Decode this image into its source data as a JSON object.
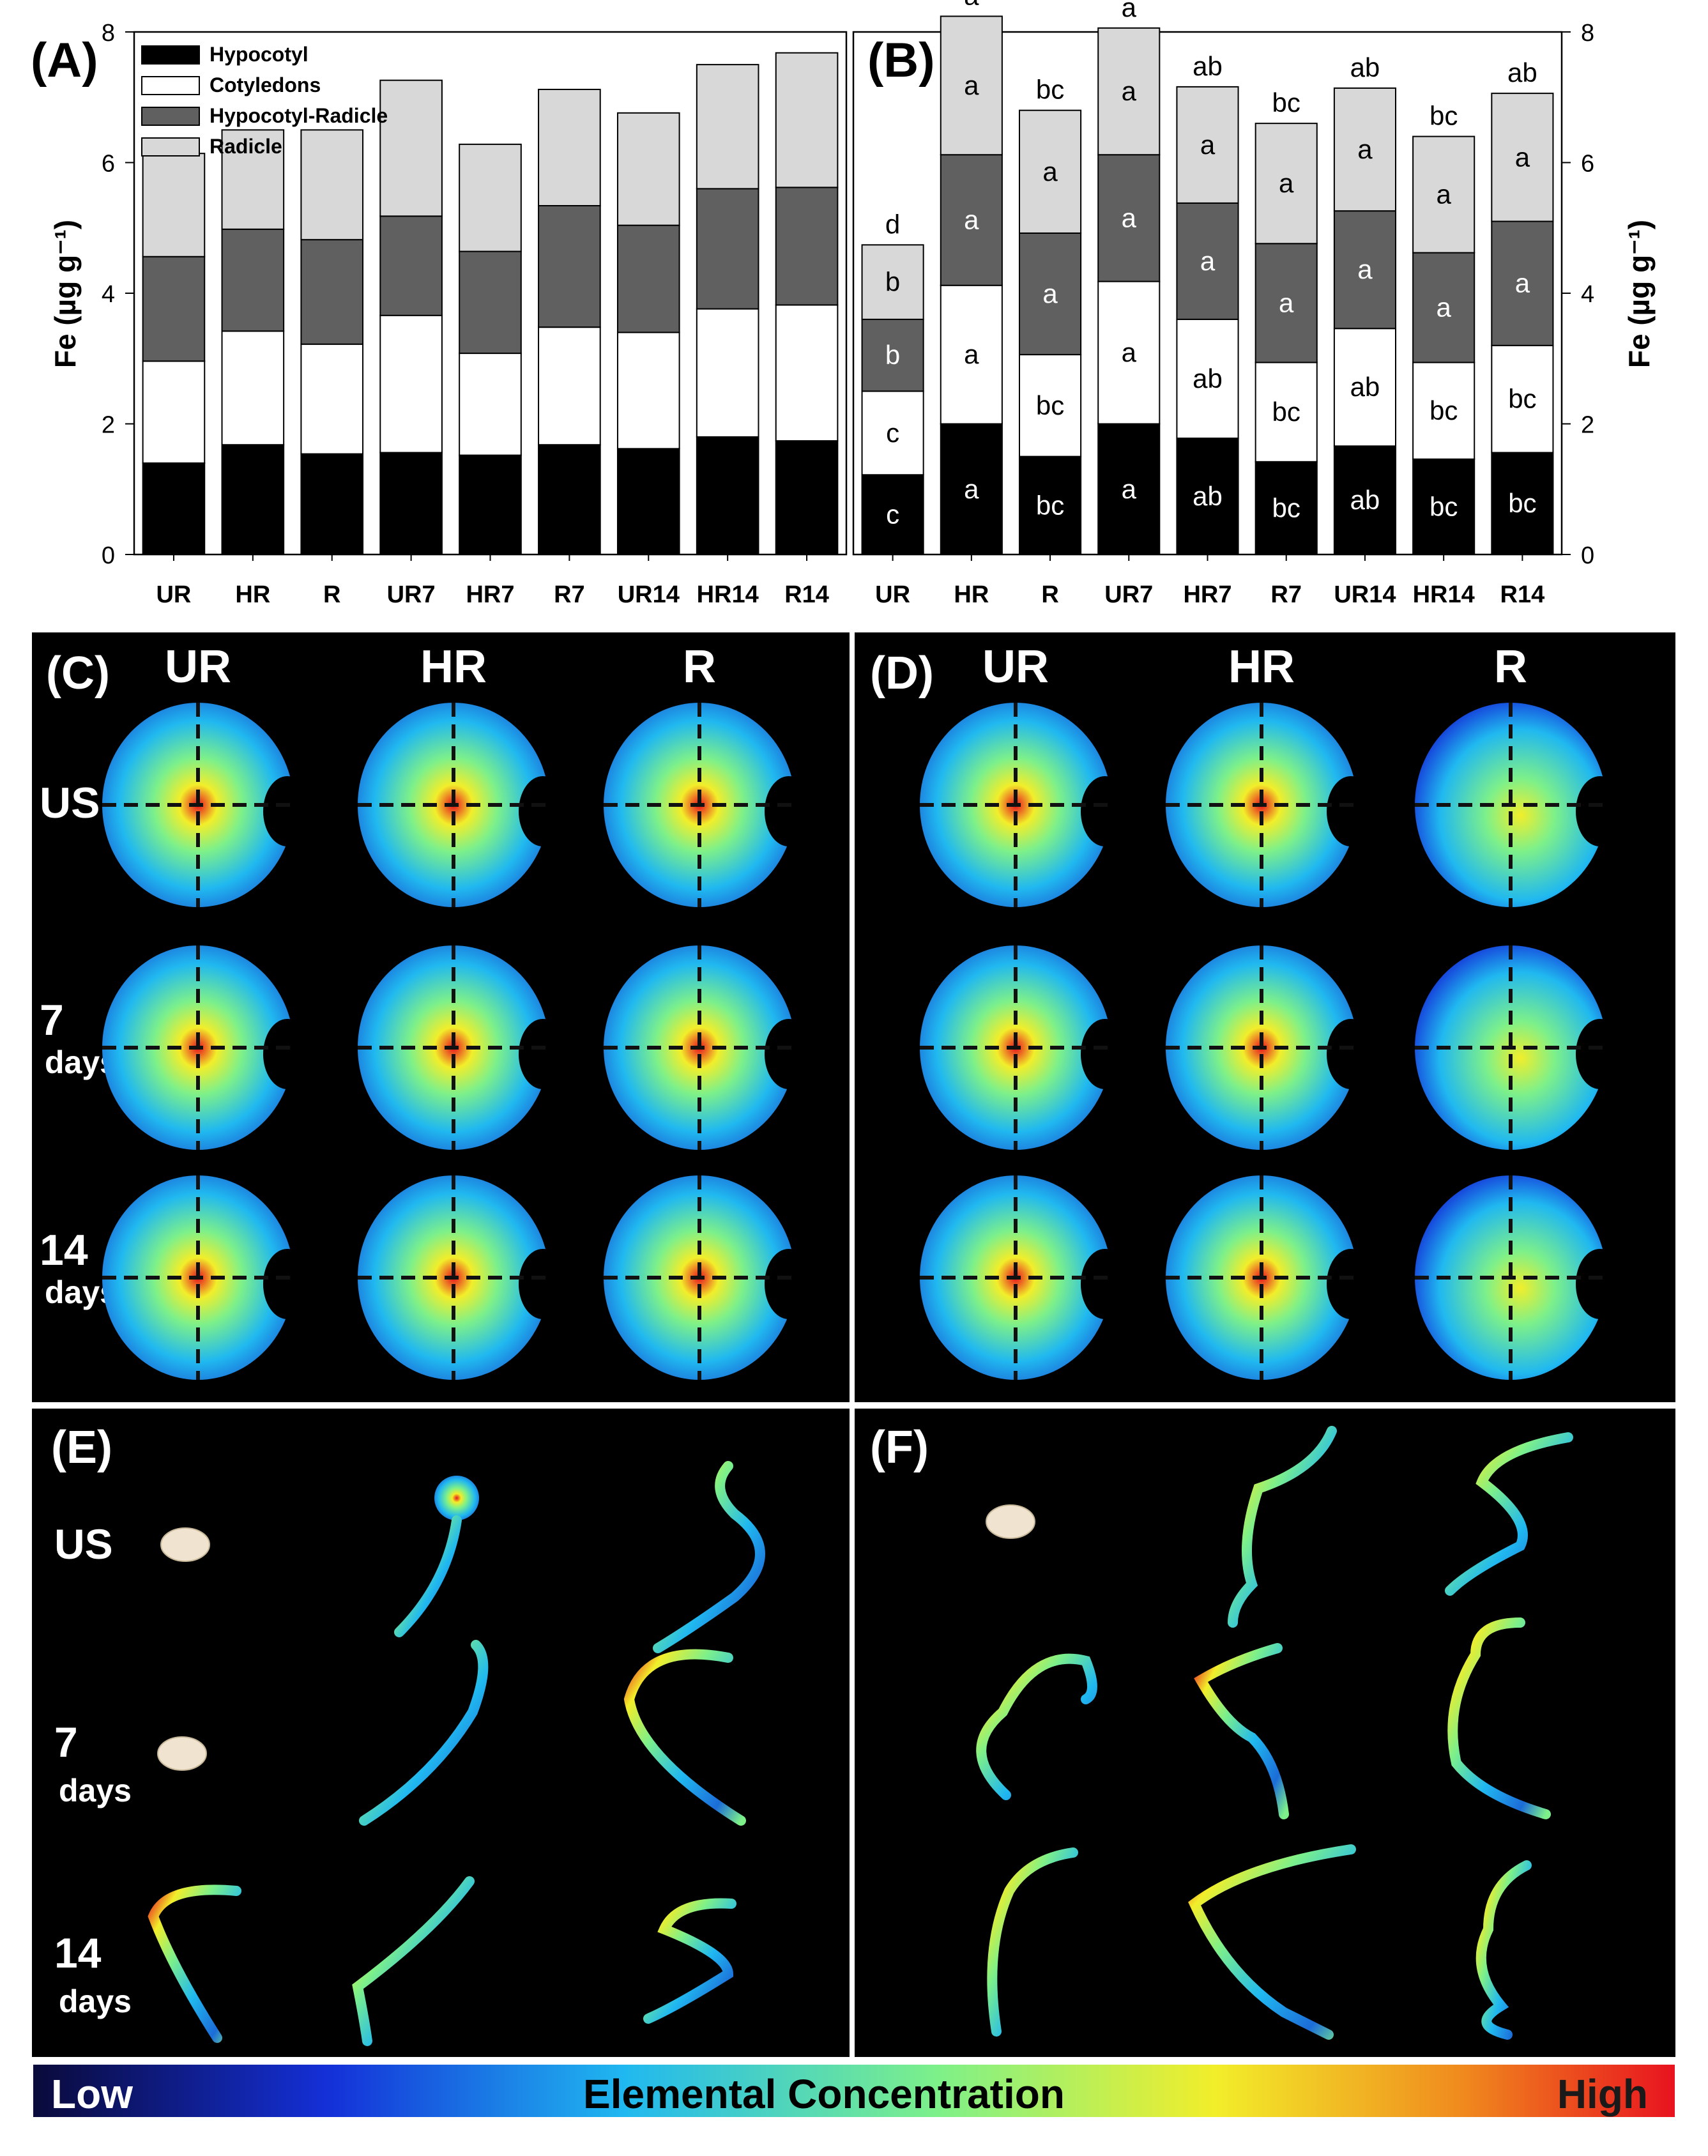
{
  "panels": {
    "A": {
      "letter": "(A)"
    },
    "B": {
      "letter": "(B)"
    },
    "C": {
      "letter": "(C)"
    },
    "D": {
      "letter": "(D)"
    },
    "E": {
      "letter": "(E)"
    },
    "F": {
      "letter": "(F)"
    }
  },
  "map_cols": [
    "UR",
    "HR",
    "R"
  ],
  "map_rows": {
    "r1": [
      "US"
    ],
    "r2": [
      "7",
      "days"
    ],
    "r3": [
      "14",
      "days"
    ]
  },
  "colorbar": {
    "low": "Low",
    "mid": "Elemental Concentration",
    "high": "High",
    "colors": [
      "#0a0a3a",
      "#1430d8",
      "#20b8f0",
      "#7df08a",
      "#f2ee2a",
      "#f08a1e",
      "#e8131f"
    ]
  },
  "chart_data": [
    {
      "panel": "A",
      "type": "bar",
      "stacked": true,
      "categories": [
        "UR",
        "HR",
        "R",
        "UR7",
        "HR7",
        "R7",
        "UR14",
        "HR14",
        "R14"
      ],
      "ylabel": "Fe (µg g⁻¹)",
      "ylim": [
        0,
        8
      ],
      "yticks": [
        0,
        2,
        4,
        6,
        8
      ],
      "legend_position": "top-left",
      "series": [
        {
          "name": "Hypocotyl",
          "color": "#000000",
          "values": [
            1.4,
            1.68,
            1.54,
            1.56,
            1.52,
            1.68,
            1.62,
            1.8,
            1.74
          ]
        },
        {
          "name": "Cotyledons",
          "color": "#ffffff",
          "values": [
            1.56,
            1.74,
            1.68,
            2.1,
            1.56,
            1.8,
            1.78,
            1.96,
            2.08
          ]
        },
        {
          "name": "Hypocotyl-Radicle",
          "color": "#606060",
          "values": [
            1.6,
            1.56,
            1.6,
            1.52,
            1.56,
            1.86,
            1.64,
            1.84,
            1.8
          ]
        },
        {
          "name": "Radicle",
          "color": "#d8d8d8",
          "values": [
            1.58,
            1.52,
            1.68,
            2.08,
            1.64,
            1.78,
            1.72,
            1.9,
            2.06
          ]
        }
      ]
    },
    {
      "panel": "B",
      "type": "bar",
      "stacked": true,
      "categories": [
        "UR",
        "HR",
        "R",
        "UR7",
        "HR7",
        "R7",
        "UR14",
        "HR14",
        "R14"
      ],
      "ylabel": "Fe (µg g⁻¹)",
      "ylim": [
        0,
        8
      ],
      "yticks": [
        0,
        2,
        4,
        6,
        8
      ],
      "series": [
        {
          "name": "Hypocotyl",
          "color": "#000000",
          "values": [
            1.22,
            2.0,
            1.5,
            2.0,
            1.78,
            1.42,
            1.66,
            1.46,
            1.56
          ],
          "labels": [
            "c",
            "a",
            "bc",
            "a",
            "ab",
            "bc",
            "ab",
            "bc",
            "bc"
          ]
        },
        {
          "name": "Cotyledons",
          "color": "#ffffff",
          "values": [
            1.28,
            2.12,
            1.56,
            2.18,
            1.82,
            1.52,
            1.8,
            1.48,
            1.64
          ],
          "labels": [
            "c",
            "a",
            "bc",
            "a",
            "ab",
            "bc",
            "ab",
            "bc",
            "bc"
          ]
        },
        {
          "name": "Hypocotyl-Radicle",
          "color": "#606060",
          "values": [
            1.1,
            2.0,
            1.86,
            1.94,
            1.78,
            1.82,
            1.8,
            1.68,
            1.9
          ],
          "labels": [
            "b",
            "a",
            "a",
            "a",
            "a",
            "a",
            "a",
            "a",
            "a"
          ]
        },
        {
          "name": "Radicle",
          "color": "#d8d8d8",
          "values": [
            1.14,
            2.12,
            1.88,
            1.94,
            1.78,
            1.84,
            1.88,
            1.78,
            1.96
          ],
          "labels": [
            "b",
            "a",
            "a",
            "a",
            "a",
            "a",
            "a",
            "a",
            "a"
          ]
        }
      ],
      "top_labels": [
        "d",
        "a",
        "bc",
        "a",
        "ab",
        "bc",
        "ab",
        "bc",
        "ab"
      ]
    }
  ]
}
